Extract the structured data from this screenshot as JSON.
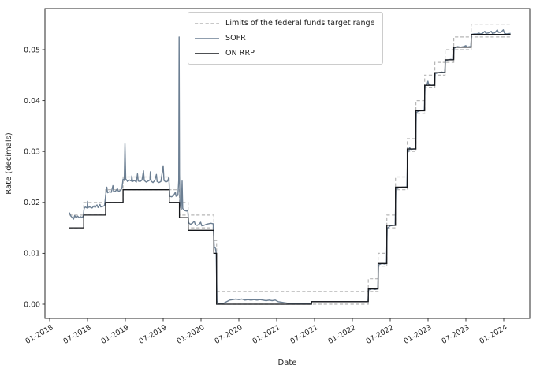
{
  "figure": {
    "background": "#ffffff"
  },
  "chart_data": {
    "type": "line",
    "title": "",
    "xlabel": "Date",
    "ylabel": "Rate (decimals)",
    "grid": false,
    "legend_position": "upper center",
    "x_tick_labels": [
      "01-2018",
      "07-2018",
      "01-2019",
      "07-2019",
      "01-2020",
      "07-2020",
      "01-2021",
      "07-2021",
      "01-2022",
      "07-2022",
      "01-2023",
      "07-2023",
      "01-2024"
    ],
    "x_tick_positions": [
      2018.0,
      2018.5,
      2019.0,
      2019.5,
      2020.0,
      2020.5,
      2021.0,
      2021.5,
      2022.0,
      2022.5,
      2023.0,
      2023.5,
      2024.0
    ],
    "y_tick_labels": [
      "0.00",
      "0.01",
      "0.02",
      "0.03",
      "0.04",
      "0.05"
    ],
    "y_tick_values": [
      0.0,
      0.01,
      0.02,
      0.03,
      0.04,
      0.05
    ],
    "ylim": [
      -0.0028,
      0.0581
    ],
    "xlim": [
      2017.94,
      2024.34
    ],
    "axes": {
      "frame_color": "#2a2a2a",
      "text_color": "#242424",
      "background": "#ffffff"
    },
    "series": [
      {
        "name": "Limits of the federal funds target range",
        "type": "step_range",
        "line_style": "dashed",
        "color": "#b6b6b6",
        "end_t": 2024.09,
        "steps": [
          {
            "t": 2018.255,
            "lower": 0.015,
            "upper": 0.0175
          },
          {
            "t": 2018.45,
            "lower": 0.0175,
            "upper": 0.02
          },
          {
            "t": 2018.74,
            "lower": 0.02,
            "upper": 0.0225
          },
          {
            "t": 2018.97,
            "lower": 0.0225,
            "upper": 0.025
          },
          {
            "t": 2019.58,
            "lower": 0.02,
            "upper": 0.0225
          },
          {
            "t": 2019.715,
            "lower": 0.0175,
            "upper": 0.02
          },
          {
            "t": 2019.83,
            "lower": 0.015,
            "upper": 0.0175
          },
          {
            "t": 2020.17,
            "lower": 0.01,
            "upper": 0.0125
          },
          {
            "t": 2020.205,
            "lower": 0.0,
            "upper": 0.0025
          },
          {
            "t": 2022.21,
            "lower": 0.0025,
            "upper": 0.005
          },
          {
            "t": 2022.34,
            "lower": 0.0075,
            "upper": 0.01
          },
          {
            "t": 2022.455,
            "lower": 0.015,
            "upper": 0.0175
          },
          {
            "t": 2022.57,
            "lower": 0.0225,
            "upper": 0.025
          },
          {
            "t": 2022.725,
            "lower": 0.03,
            "upper": 0.0325
          },
          {
            "t": 2022.84,
            "lower": 0.0375,
            "upper": 0.04
          },
          {
            "t": 2022.955,
            "lower": 0.0425,
            "upper": 0.045
          },
          {
            "t": 2023.09,
            "lower": 0.045,
            "upper": 0.0475
          },
          {
            "t": 2023.225,
            "lower": 0.0475,
            "upper": 0.05
          },
          {
            "t": 2023.34,
            "lower": 0.05,
            "upper": 0.0525
          },
          {
            "t": 2023.57,
            "lower": 0.0525,
            "upper": 0.055
          }
        ]
      },
      {
        "name": "SOFR",
        "type": "line",
        "line_style": "solid",
        "color": "#6c7f93",
        "points": [
          [
            2018.26,
            0.018
          ],
          [
            2018.28,
            0.0173
          ],
          [
            2018.3,
            0.017
          ],
          [
            2018.315,
            0.0167
          ],
          [
            2018.33,
            0.0174
          ],
          [
            2018.35,
            0.017
          ],
          [
            2018.37,
            0.0173
          ],
          [
            2018.39,
            0.017
          ],
          [
            2018.41,
            0.0172
          ],
          [
            2018.43,
            0.017
          ],
          [
            2018.445,
            0.0174
          ],
          [
            2018.455,
            0.0188
          ],
          [
            2018.47,
            0.0191
          ],
          [
            2018.495,
            0.0189
          ],
          [
            2018.5,
            0.0202
          ],
          [
            2018.505,
            0.019
          ],
          [
            2018.53,
            0.0191
          ],
          [
            2018.56,
            0.0189
          ],
          [
            2018.585,
            0.0193
          ],
          [
            2018.6,
            0.019
          ],
          [
            2018.625,
            0.0195
          ],
          [
            2018.64,
            0.019
          ],
          [
            2018.665,
            0.0196
          ],
          [
            2018.675,
            0.0191
          ],
          [
            2018.7,
            0.0192
          ],
          [
            2018.725,
            0.0194
          ],
          [
            2018.745,
            0.022
          ],
          [
            2018.755,
            0.023
          ],
          [
            2018.765,
            0.0219
          ],
          [
            2018.79,
            0.0221
          ],
          [
            2018.815,
            0.022
          ],
          [
            2018.835,
            0.0233
          ],
          [
            2018.845,
            0.0221
          ],
          [
            2018.87,
            0.0222
          ],
          [
            2018.895,
            0.0227
          ],
          [
            2018.91,
            0.0221
          ],
          [
            2018.935,
            0.0224
          ],
          [
            2018.955,
            0.0228
          ],
          [
            2018.97,
            0.0246
          ],
          [
            2018.985,
            0.0243
          ],
          [
            2018.995,
            0.0315
          ],
          [
            2019.005,
            0.0246
          ],
          [
            2019.03,
            0.0241
          ],
          [
            2019.055,
            0.0244
          ],
          [
            2019.08,
            0.0242
          ],
          [
            2019.085,
            0.0252
          ],
          [
            2019.095,
            0.0241
          ],
          [
            2019.12,
            0.0243
          ],
          [
            2019.145,
            0.024
          ],
          [
            2019.16,
            0.0256
          ],
          [
            2019.17,
            0.0242
          ],
          [
            2019.195,
            0.0241
          ],
          [
            2019.22,
            0.0244
          ],
          [
            2019.24,
            0.0262
          ],
          [
            2019.25,
            0.0243
          ],
          [
            2019.275,
            0.024
          ],
          [
            2019.3,
            0.0242
          ],
          [
            2019.325,
            0.0244
          ],
          [
            2019.33,
            0.026
          ],
          [
            2019.34,
            0.0242
          ],
          [
            2019.365,
            0.0239
          ],
          [
            2019.39,
            0.0243
          ],
          [
            2019.41,
            0.0255
          ],
          [
            2019.42,
            0.0241
          ],
          [
            2019.445,
            0.0239
          ],
          [
            2019.47,
            0.0241
          ],
          [
            2019.5,
            0.0272
          ],
          [
            2019.51,
            0.0243
          ],
          [
            2019.535,
            0.024
          ],
          [
            2019.56,
            0.0242
          ],
          [
            2019.575,
            0.025
          ],
          [
            2019.585,
            0.0212
          ],
          [
            2019.61,
            0.0211
          ],
          [
            2019.635,
            0.0213
          ],
          [
            2019.66,
            0.022
          ],
          [
            2019.67,
            0.0212
          ],
          [
            2019.695,
            0.0214
          ],
          [
            2019.705,
            0.0243
          ],
          [
            2019.71,
            0.0525
          ],
          [
            2019.716,
            0.0255
          ],
          [
            2019.722,
            0.0195
          ],
          [
            2019.74,
            0.0186
          ],
          [
            2019.75,
            0.0242
          ],
          [
            2019.758,
            0.0188
          ],
          [
            2019.78,
            0.0184
          ],
          [
            2019.81,
            0.0183
          ],
          [
            2019.825,
            0.0185
          ],
          [
            2019.835,
            0.016
          ],
          [
            2019.86,
            0.0157
          ],
          [
            2019.885,
            0.0159
          ],
          [
            2019.91,
            0.0163
          ],
          [
            2019.925,
            0.0156
          ],
          [
            2019.95,
            0.0155
          ],
          [
            2019.975,
            0.0157
          ],
          [
            2019.995,
            0.0161
          ],
          [
            2020.01,
            0.0154
          ],
          [
            2020.04,
            0.0155
          ],
          [
            2020.07,
            0.0157
          ],
          [
            2020.1,
            0.0158
          ],
          [
            2020.13,
            0.0159
          ],
          [
            2020.16,
            0.0158
          ],
          [
            2020.175,
            0.0112
          ],
          [
            2020.19,
            0.011
          ],
          [
            2020.2,
            0.0101
          ],
          [
            2020.21,
            0.0006
          ],
          [
            2020.23,
            0.0001
          ],
          [
            2020.26,
            0.0001
          ],
          [
            2020.3,
            0.0002
          ],
          [
            2020.34,
            0.0005
          ],
          [
            2020.38,
            0.0008
          ],
          [
            2020.42,
            0.0009
          ],
          [
            2020.46,
            0.001
          ],
          [
            2020.5,
            0.0009
          ],
          [
            2020.54,
            0.001
          ],
          [
            2020.58,
            0.0008
          ],
          [
            2020.62,
            0.0009
          ],
          [
            2020.66,
            0.0008
          ],
          [
            2020.7,
            0.0009
          ],
          [
            2020.74,
            0.0008
          ],
          [
            2020.78,
            0.0009
          ],
          [
            2020.82,
            0.0008
          ],
          [
            2020.86,
            0.0007
          ],
          [
            2020.9,
            0.0008
          ],
          [
            2020.94,
            0.0007
          ],
          [
            2020.98,
            0.0008
          ],
          [
            2021.02,
            0.0005
          ],
          [
            2021.06,
            0.0004
          ],
          [
            2021.1,
            0.0003
          ],
          [
            2021.14,
            0.0002
          ],
          [
            2021.18,
            0.0001
          ],
          [
            2021.24,
            0.0001
          ],
          [
            2021.3,
            0.0001
          ],
          [
            2021.36,
            0.0001
          ],
          [
            2021.42,
            0.0001
          ],
          [
            2021.455,
            0.0001
          ],
          [
            2021.465,
            0.0005
          ],
          [
            2021.55,
            0.0005
          ],
          [
            2021.65,
            0.0005
          ],
          [
            2021.75,
            0.0005
          ],
          [
            2021.85,
            0.0005
          ],
          [
            2021.95,
            0.0005
          ],
          [
            2022.05,
            0.0005
          ],
          [
            2022.15,
            0.0005
          ],
          [
            2022.205,
            0.0005
          ],
          [
            2022.215,
            0.0028
          ],
          [
            2022.26,
            0.003
          ],
          [
            2022.3,
            0.0029
          ],
          [
            2022.335,
            0.003
          ],
          [
            2022.345,
            0.0077
          ],
          [
            2022.39,
            0.008
          ],
          [
            2022.43,
            0.0079
          ],
          [
            2022.45,
            0.008
          ],
          [
            2022.46,
            0.0149
          ],
          [
            2022.5,
            0.0154
          ],
          [
            2022.54,
            0.0155
          ],
          [
            2022.565,
            0.0155
          ],
          [
            2022.575,
            0.0226
          ],
          [
            2022.62,
            0.0229
          ],
          [
            2022.66,
            0.023
          ],
          [
            2022.7,
            0.023
          ],
          [
            2022.72,
            0.0231
          ],
          [
            2022.73,
            0.0297
          ],
          [
            2022.75,
            0.0303
          ],
          [
            2022.755,
            0.0308
          ],
          [
            2022.77,
            0.0304
          ],
          [
            2022.81,
            0.0305
          ],
          [
            2022.835,
            0.0305
          ],
          [
            2022.845,
            0.0377
          ],
          [
            2022.89,
            0.038
          ],
          [
            2022.93,
            0.0381
          ],
          [
            2022.95,
            0.0382
          ],
          [
            2022.96,
            0.0428
          ],
          [
            2022.985,
            0.0431
          ],
          [
            2022.998,
            0.0438
          ],
          [
            2023.01,
            0.0431
          ],
          [
            2023.05,
            0.043
          ],
          [
            2023.085,
            0.0431
          ],
          [
            2023.095,
            0.0453
          ],
          [
            2023.14,
            0.0455
          ],
          [
            2023.18,
            0.0456
          ],
          [
            2023.22,
            0.0455
          ],
          [
            2023.23,
            0.0478
          ],
          [
            2023.27,
            0.048
          ],
          [
            2023.3,
            0.0481
          ],
          [
            2023.335,
            0.048
          ],
          [
            2023.345,
            0.0503
          ],
          [
            2023.39,
            0.0506
          ],
          [
            2023.43,
            0.0505
          ],
          [
            2023.47,
            0.0506
          ],
          [
            2023.5,
            0.0508
          ],
          [
            2023.51,
            0.0505
          ],
          [
            2023.55,
            0.0506
          ],
          [
            2023.565,
            0.0506
          ],
          [
            2023.575,
            0.053
          ],
          [
            2023.61,
            0.0531
          ],
          [
            2023.65,
            0.0531
          ],
          [
            2023.67,
            0.0533
          ],
          [
            2023.69,
            0.0531
          ],
          [
            2023.72,
            0.0532
          ],
          [
            2023.75,
            0.0536
          ],
          [
            2023.765,
            0.0532
          ],
          [
            2023.8,
            0.0533
          ],
          [
            2023.835,
            0.0536
          ],
          [
            2023.85,
            0.0532
          ],
          [
            2023.88,
            0.0533
          ],
          [
            2023.915,
            0.0539
          ],
          [
            2023.93,
            0.0534
          ],
          [
            2023.96,
            0.0534
          ],
          [
            2023.995,
            0.0539
          ],
          [
            2024.01,
            0.0532
          ],
          [
            2024.04,
            0.0531
          ],
          [
            2024.09,
            0.0532
          ]
        ]
      },
      {
        "name": "ON RRP",
        "type": "step",
        "line_style": "solid",
        "color": "#14161a",
        "end_t": 2024.09,
        "steps": [
          [
            2018.255,
            0.015
          ],
          [
            2018.45,
            0.0175
          ],
          [
            2018.74,
            0.02
          ],
          [
            2018.97,
            0.0225
          ],
          [
            2019.58,
            0.02
          ],
          [
            2019.715,
            0.017
          ],
          [
            2019.83,
            0.0145
          ],
          [
            2020.17,
            0.01
          ],
          [
            2020.205,
            0.0
          ],
          [
            2021.46,
            0.0005
          ],
          [
            2022.21,
            0.003
          ],
          [
            2022.34,
            0.008
          ],
          [
            2022.455,
            0.0155
          ],
          [
            2022.57,
            0.023
          ],
          [
            2022.725,
            0.0305
          ],
          [
            2022.84,
            0.038
          ],
          [
            2022.955,
            0.043
          ],
          [
            2023.09,
            0.0455
          ],
          [
            2023.225,
            0.048
          ],
          [
            2023.34,
            0.0505
          ],
          [
            2023.57,
            0.053
          ]
        ]
      }
    ]
  }
}
